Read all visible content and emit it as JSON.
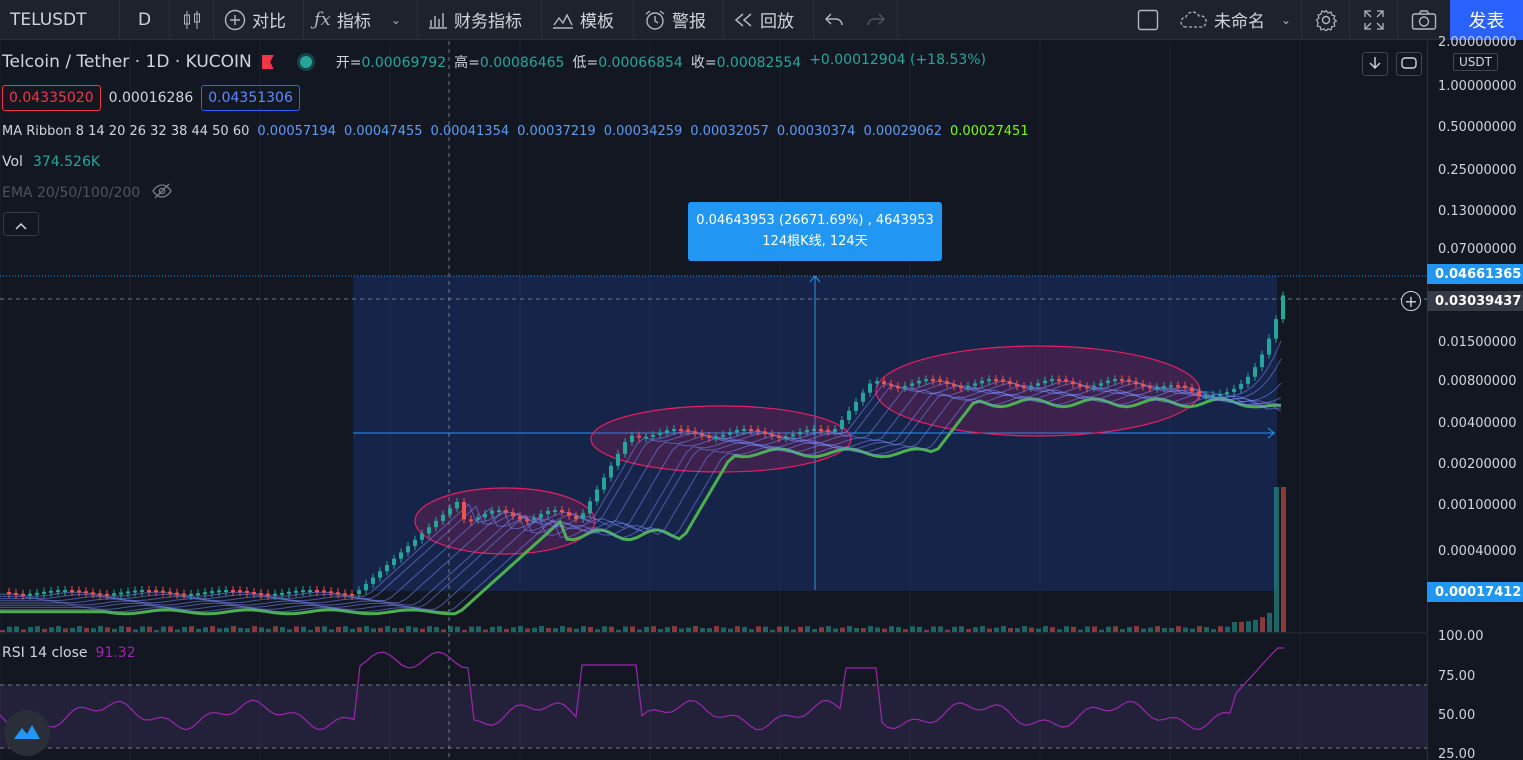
{
  "toolbar": {
    "symbol": "TELUSDT",
    "interval": "D",
    "compare": "对比",
    "indicators": "指标",
    "financials": "财务指标",
    "templates": "模板",
    "alert": "警报",
    "replay": "回放",
    "layout_name": "未命名",
    "publish": "发表"
  },
  "legend": {
    "title": "Telcoin / Tether · 1D · KUCOIN",
    "open_label": "开=",
    "open": "0.00069792",
    "high_label": "高=",
    "high": "0.00086465",
    "low_label": "低=",
    "low": "0.00066854",
    "close_label": "收=",
    "close": "0.00082554",
    "change": "+0.00012904 (+18.53%)",
    "bid": "0.04335020",
    "spread": "0.00016286",
    "ask": "0.04351306"
  },
  "ma_ribbon": {
    "label": "MA Ribbon 8 14 20 26 32 38 44 50 60",
    "values": [
      "0.00057194",
      "0.00047455",
      "0.00041354",
      "0.00037219",
      "0.00034259",
      "0.00032057",
      "0.00030374",
      "0.00029062",
      "0.00027451"
    ]
  },
  "volume": {
    "label": "Vol",
    "value": "374.526K"
  },
  "ema": {
    "label": "EMA 20/50/100/200"
  },
  "rsi": {
    "label": "RSI 14 close",
    "value": "91.32"
  },
  "measure": {
    "line1": "0.04643953 (26671.69%) , 4643953",
    "line2": "124根K线, 124天"
  },
  "price_axis": {
    "currency": "USDT",
    "ticks": [
      "2.00000000",
      "1.00000000",
      "0.50000000",
      "0.25000000",
      "0.13000000",
      "0.07000000",
      "0.01500000",
      "0.00800000",
      "0.00400000",
      "0.00200000",
      "0.00100000",
      "0.00040000"
    ],
    "last_price": "0.04661365",
    "crosshair_price": "0.03039437",
    "range_low": "0.00017412"
  },
  "rsi_axis": {
    "ticks": [
      "100.00",
      "75.00",
      "50.00",
      "25.00"
    ]
  },
  "colors": {
    "up": "#26a69a",
    "down": "#ef5350",
    "accent": "#2962ff",
    "ribbon_slow": "#4caf50",
    "rsi": "#9c27b0"
  }
}
